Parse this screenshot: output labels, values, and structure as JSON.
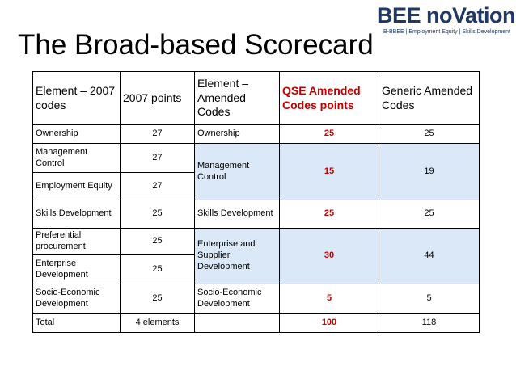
{
  "header": {
    "title": "The Broad-based Scorecard",
    "logo": "BEE noVation",
    "tagline": "B-BBEE | Employment Equity | Skills Development"
  },
  "table": {
    "columns": [
      "Element – 2007 codes",
      "2007 points",
      "Element – Amended Codes",
      "QSE Amended Codes points",
      "Generic Amended Codes"
    ],
    "left_rows": [
      [
        "Ownership",
        27
      ],
      [
        "Management Control",
        27
      ],
      [
        "Employment Equity",
        27
      ],
      [
        "Skills Development",
        25
      ],
      [
        "Preferential procurement",
        25
      ],
      [
        "Enterprise Development",
        25
      ],
      [
        "Socio-Economic Development",
        25
      ],
      [
        "Total",
        "4 elements"
      ]
    ],
    "right_rows": [
      {
        "element": "Ownership",
        "qse": 25,
        "generic": 25
      },
      {
        "element": "Management Control",
        "qse": 15,
        "generic": 19
      },
      {
        "element": "Skills Development",
        "qse": 25,
        "generic": 25
      },
      {
        "element": "Enterprise and Supplier Development",
        "qse": 30,
        "generic": 44
      },
      {
        "element": "Socio-Economic Development",
        "qse": 5,
        "generic": 5
      },
      {
        "qse": 100,
        "generic": 118
      }
    ]
  }
}
